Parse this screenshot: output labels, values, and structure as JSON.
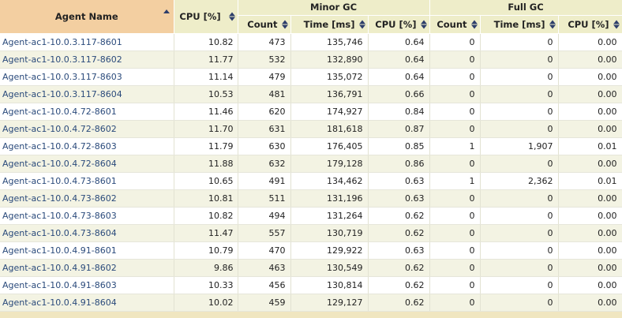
{
  "header": {
    "agent_name": "Agent Name",
    "cpu": "CPU [%]",
    "minor_gc": "Minor GC",
    "full_gc": "Full GC",
    "count": "Count",
    "time_ms": "Time [ms]",
    "cpu_pct": "CPU [%]"
  },
  "rows": [
    {
      "agent": "Agent-ac1-10.0.3.117-8601",
      "cpu": "10.82",
      "minor_count": "473",
      "minor_time": "135,746",
      "minor_cpu": "0.64",
      "full_count": "0",
      "full_time": "0",
      "full_cpu": "0.00"
    },
    {
      "agent": "Agent-ac1-10.0.3.117-8602",
      "cpu": "11.77",
      "minor_count": "532",
      "minor_time": "132,890",
      "minor_cpu": "0.64",
      "full_count": "0",
      "full_time": "0",
      "full_cpu": "0.00"
    },
    {
      "agent": "Agent-ac1-10.0.3.117-8603",
      "cpu": "11.14",
      "minor_count": "479",
      "minor_time": "135,072",
      "minor_cpu": "0.64",
      "full_count": "0",
      "full_time": "0",
      "full_cpu": "0.00"
    },
    {
      "agent": "Agent-ac1-10.0.3.117-8604",
      "cpu": "10.53",
      "minor_count": "481",
      "minor_time": "136,791",
      "minor_cpu": "0.66",
      "full_count": "0",
      "full_time": "0",
      "full_cpu": "0.00"
    },
    {
      "agent": "Agent-ac1-10.0.4.72-8601",
      "cpu": "11.46",
      "minor_count": "620",
      "minor_time": "174,927",
      "minor_cpu": "0.84",
      "full_count": "0",
      "full_time": "0",
      "full_cpu": "0.00"
    },
    {
      "agent": "Agent-ac1-10.0.4.72-8602",
      "cpu": "11.70",
      "minor_count": "631",
      "minor_time": "181,618",
      "minor_cpu": "0.87",
      "full_count": "0",
      "full_time": "0",
      "full_cpu": "0.00"
    },
    {
      "agent": "Agent-ac1-10.0.4.72-8603",
      "cpu": "11.79",
      "minor_count": "630",
      "minor_time": "176,405",
      "minor_cpu": "0.85",
      "full_count": "1",
      "full_time": "1,907",
      "full_cpu": "0.01"
    },
    {
      "agent": "Agent-ac1-10.0.4.72-8604",
      "cpu": "11.88",
      "minor_count": "632",
      "minor_time": "179,128",
      "minor_cpu": "0.86",
      "full_count": "0",
      "full_time": "0",
      "full_cpu": "0.00"
    },
    {
      "agent": "Agent-ac1-10.0.4.73-8601",
      "cpu": "10.65",
      "minor_count": "491",
      "minor_time": "134,462",
      "minor_cpu": "0.63",
      "full_count": "1",
      "full_time": "2,362",
      "full_cpu": "0.01"
    },
    {
      "agent": "Agent-ac1-10.0.4.73-8602",
      "cpu": "10.81",
      "minor_count": "511",
      "minor_time": "131,196",
      "minor_cpu": "0.63",
      "full_count": "0",
      "full_time": "0",
      "full_cpu": "0.00"
    },
    {
      "agent": "Agent-ac1-10.0.4.73-8603",
      "cpu": "10.82",
      "minor_count": "494",
      "minor_time": "131,264",
      "minor_cpu": "0.62",
      "full_count": "0",
      "full_time": "0",
      "full_cpu": "0.00"
    },
    {
      "agent": "Agent-ac1-10.0.4.73-8604",
      "cpu": "11.47",
      "minor_count": "557",
      "minor_time": "130,719",
      "minor_cpu": "0.62",
      "full_count": "0",
      "full_time": "0",
      "full_cpu": "0.00"
    },
    {
      "agent": "Agent-ac1-10.0.4.91-8601",
      "cpu": "10.79",
      "minor_count": "470",
      "minor_time": "129,922",
      "minor_cpu": "0.63",
      "full_count": "0",
      "full_time": "0",
      "full_cpu": "0.00"
    },
    {
      "agent": "Agent-ac1-10.0.4.91-8602",
      "cpu": "9.86",
      "minor_count": "463",
      "minor_time": "130,549",
      "minor_cpu": "0.62",
      "full_count": "0",
      "full_time": "0",
      "full_cpu": "0.00"
    },
    {
      "agent": "Agent-ac1-10.0.4.91-8603",
      "cpu": "10.33",
      "minor_count": "456",
      "minor_time": "130,814",
      "minor_cpu": "0.62",
      "full_count": "0",
      "full_time": "0",
      "full_cpu": "0.00"
    },
    {
      "agent": "Agent-ac1-10.0.4.91-8604",
      "cpu": "10.02",
      "minor_count": "459",
      "minor_time": "129,127",
      "minor_cpu": "0.62",
      "full_count": "0",
      "full_time": "0",
      "full_cpu": "0.00"
    }
  ],
  "icons": {
    "sorted_ascending": "sort-ascending-icon",
    "sortable": "sort-both-icon"
  },
  "colors": {
    "sorted_header_bg": "#f3cfa1",
    "header_bg": "#eeedc9",
    "link_text": "#2a4a7b",
    "alt_row": "#f3f3e3",
    "arrow": "#2d3e6b"
  }
}
